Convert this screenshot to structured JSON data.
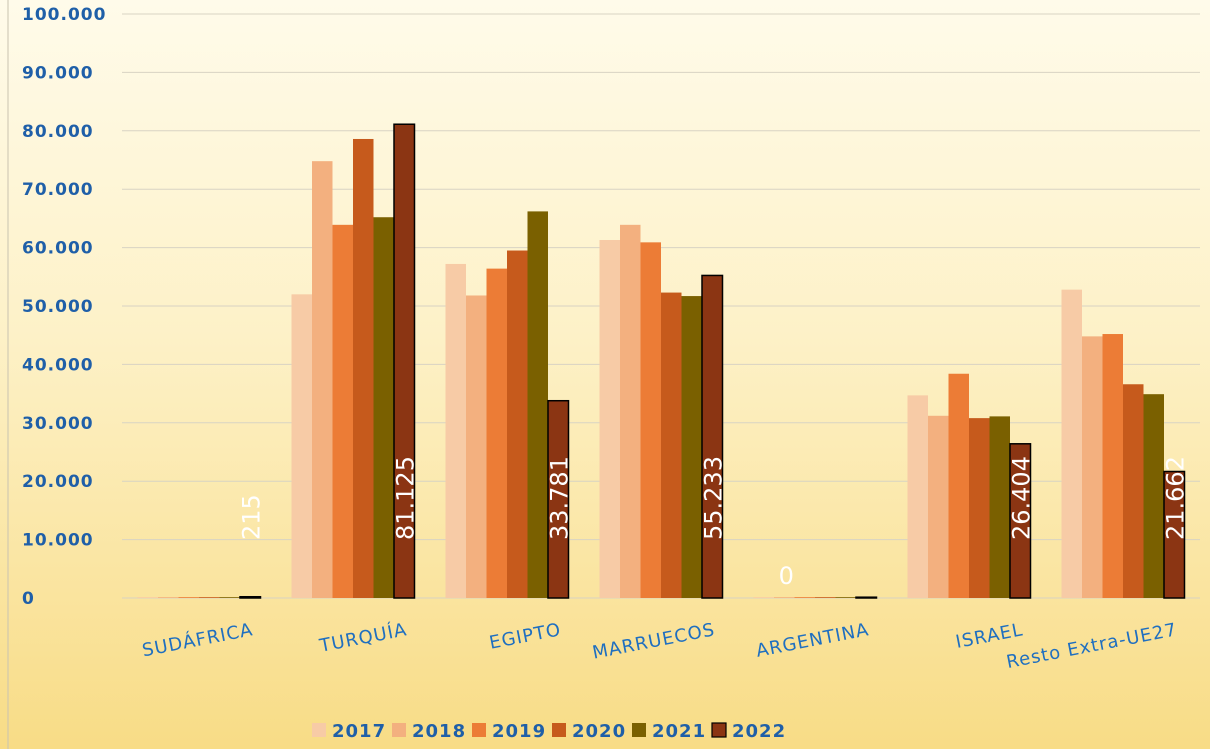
{
  "chart_data": {
    "type": "bar",
    "categories": [
      "SUDÁFRICA",
      "TURQUÍA",
      "EGIPTO",
      "MARRUECOS",
      "ARGENTINA",
      "ISRAEL",
      "Resto Extra-UE27"
    ],
    "series": [
      {
        "name": "2017",
        "color": "#f7cba6",
        "values": [
          0,
          52000,
          57200,
          61300,
          0,
          34700,
          52800
        ]
      },
      {
        "name": "2018",
        "color": "#f3b07f",
        "values": [
          0,
          74800,
          51800,
          63900,
          0,
          31200,
          44800
        ]
      },
      {
        "name": "2019",
        "color": "#ec7c36",
        "values": [
          0,
          63900,
          56400,
          60900,
          0,
          38400,
          45200
        ]
      },
      {
        "name": "2020",
        "color": "#c65a1c",
        "values": [
          0,
          78600,
          59500,
          52300,
          0,
          30800,
          36600
        ]
      },
      {
        "name": "2021",
        "color": "#7a6000",
        "values": [
          0,
          65200,
          66200,
          51700,
          0,
          31100,
          34900
        ]
      },
      {
        "name": "2022",
        "color": "#8b3513",
        "values": [
          215,
          81125,
          33781,
          55233,
          0,
          26404,
          21662
        ]
      }
    ],
    "data_labels": [
      "215",
      "81.125",
      "33.781",
      "55.233",
      "0",
      "26.404",
      "21.662"
    ],
    "yticks": [
      "0",
      "10.000",
      "20.000",
      "30.000",
      "40.000",
      "50.000",
      "60.000",
      "70.000",
      "80.000",
      "90.000",
      "100.000"
    ],
    "ylim": [
      0,
      100000
    ],
    "grid": true,
    "legend_position": "bottom",
    "title": "",
    "xlabel": "",
    "ylabel": ""
  }
}
